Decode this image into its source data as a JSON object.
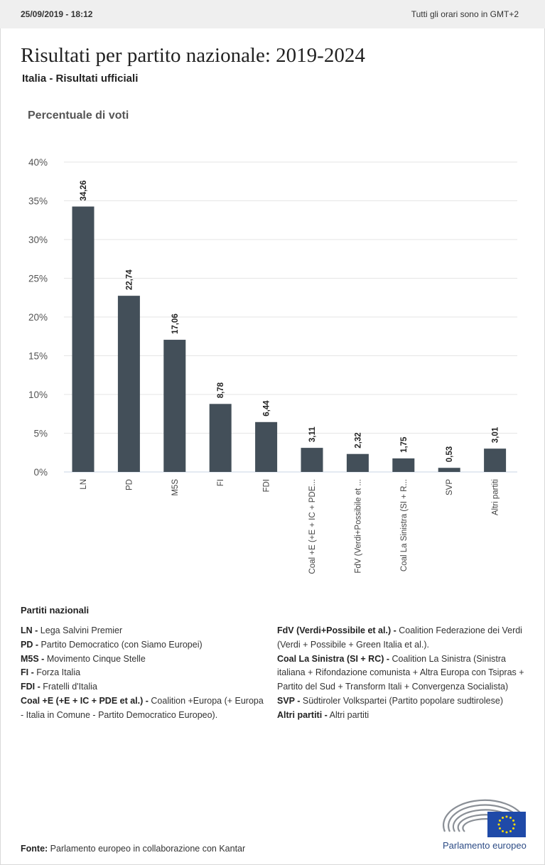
{
  "header": {
    "datetime": "25/09/2019 - 18:12",
    "timezone_note": "Tutti gli orari sono in GMT+2"
  },
  "title": "Risultati per partito nazionale: 2019-2024",
  "subtitle": "Italia - Risultati ufficiali",
  "chart_data": {
    "type": "bar",
    "ylabel": "Percentuale di voti",
    "ylim": [
      0,
      40
    ],
    "yticks": [
      "40%",
      "35%",
      "30%",
      "25%",
      "20%",
      "15%",
      "10%",
      "5%",
      "0%"
    ],
    "ytick_values": [
      40,
      35,
      30,
      25,
      20,
      15,
      10,
      5,
      0
    ],
    "categories": [
      "LN",
      "PD",
      "M5S",
      "FI",
      "FDI",
      "Coal +E (+E + IC + PDE...",
      "FdV (Verdi+Possibile et ...",
      "Coal La Sinistra (SI + R...",
      "SVP",
      "Altri partiti"
    ],
    "values": [
      34.26,
      22.74,
      17.06,
      8.78,
      6.44,
      3.11,
      2.32,
      1.75,
      0.53,
      3.01
    ],
    "value_labels": [
      "34,26",
      "22,74",
      "17,06",
      "8,78",
      "6,44",
      "3,11",
      "2,32",
      "1,75",
      "0,53",
      "3,01"
    ],
    "bar_color": "#434f59",
    "grid": true
  },
  "legend": {
    "title": "Partiti nazionali",
    "col1": [
      {
        "abbr": "LN -",
        "name": "Lega Salvini Premier"
      },
      {
        "abbr": "PD -",
        "name": "Partito Democratico (con Siamo Europei)"
      },
      {
        "abbr": "M5S -",
        "name": "Movimento Cinque Stelle"
      },
      {
        "abbr": "FI -",
        "name": "Forza Italia"
      },
      {
        "abbr": "FDI -",
        "name": "Fratelli d'Italia"
      },
      {
        "abbr": "Coal +E (+E + IC + PDE et al.) -",
        "name": "Coalition +Europa (+ Europa - Italia in Comune - Partito Democratico Europeo)."
      }
    ],
    "col2": [
      {
        "abbr": "FdV (Verdi+Possibile et al.) -",
        "name": "Coalition Federazione dei Verdi (Verdi + Possibile + Green Italia et al.)."
      },
      {
        "abbr": "Coal La Sinistra (SI + RC) -",
        "name": "Coalition La Sinistra (Sinistra italiana + Rifondazione comunista + Altra Europa con Tsipras + Partito del Sud + Transform Itali + Convergenza Socialista)"
      },
      {
        "abbr": "SVP -",
        "name": "Südtiroler Volkspartei (Partito popolare sudtirolese)"
      },
      {
        "abbr": "Altri partiti -",
        "name": "Altri partiti"
      }
    ]
  },
  "footer": {
    "label": "Fonte:",
    "text": "Parlamento europeo in collaborazione con Kantar"
  },
  "logo": {
    "text": "Parlamento europeo",
    "icon": "european-parliament-logo-icon",
    "flag_color": "#1f4aa8",
    "star_color": "#ffdd00"
  }
}
